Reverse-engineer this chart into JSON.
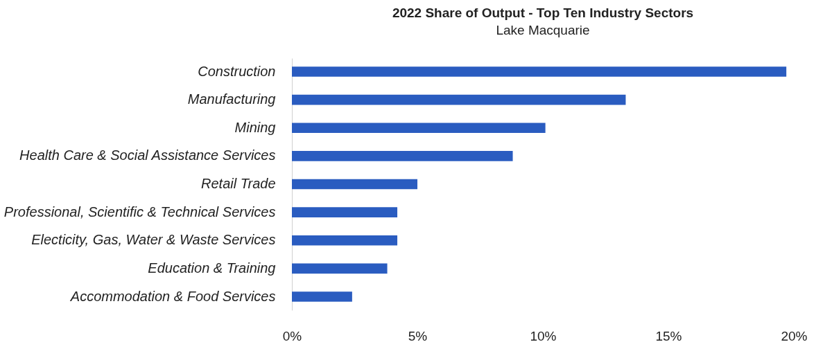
{
  "chart_data": {
    "type": "bar",
    "title": "2022 Share of Output - Top Ten Industry Sectors",
    "subtitle": "Lake Macquarie",
    "orientation": "horizontal",
    "categories": [
      "Construction",
      "Manufacturing",
      "Mining",
      "Health Care & Social Assistance Services",
      "Retail Trade",
      "Professional, Scientific & Technical Services",
      "Electicity, Gas, Water & Waste Services",
      "Education & Training",
      "Accommodation & Food Services"
    ],
    "values": [
      19.7,
      13.3,
      10.1,
      8.8,
      5.0,
      4.2,
      4.2,
      3.8,
      2.4
    ],
    "color": "#2a5cc0",
    "xlim": [
      0,
      20
    ],
    "xticks": [
      {
        "value": 0,
        "label": "0%"
      },
      {
        "value": 5,
        "label": "5%"
      },
      {
        "value": 10,
        "label": "10%"
      },
      {
        "value": 15,
        "label": "15%"
      },
      {
        "value": 20,
        "label": "20%"
      }
    ],
    "grid": false
  }
}
